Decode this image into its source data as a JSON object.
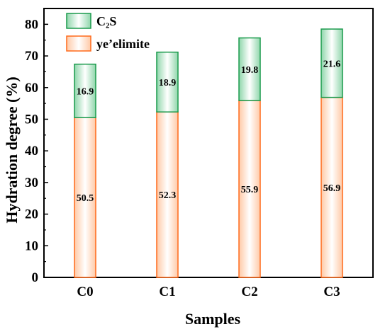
{
  "chart_data": {
    "type": "bar",
    "stacked": true,
    "categories": [
      "C0",
      "C1",
      "C2",
      "C3"
    ],
    "series": [
      {
        "name": "ye’elimite",
        "values": [
          50.5,
          52.3,
          55.9,
          56.9
        ],
        "fill": "#ffd2b3",
        "stroke": "#ff6a1a",
        "fill_core": "#ffffff"
      },
      {
        "name": "C₂S",
        "values": [
          16.9,
          18.9,
          19.8,
          21.6
        ],
        "fill": "#a8dfbd",
        "stroke": "#1a9a4c",
        "fill_core": "#ffffff"
      }
    ],
    "xlabel": "Samples",
    "ylabel": "Hydration degree (%)",
    "ylim": [
      0,
      85
    ],
    "yticks": [
      0,
      10,
      20,
      30,
      40,
      50,
      60,
      70,
      80
    ],
    "grid": false,
    "legend": "top-left"
  }
}
